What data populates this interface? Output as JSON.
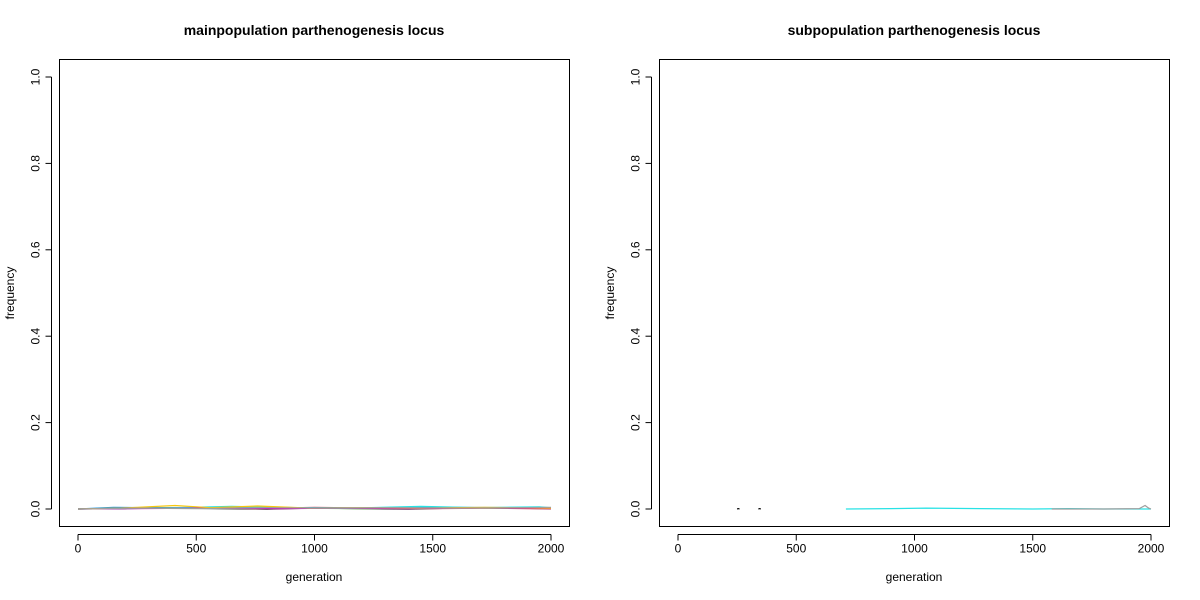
{
  "chart_data": [
    {
      "type": "line",
      "title": "mainpopulation parthenogenesis locus",
      "xlabel": "generation",
      "ylabel": "frequency",
      "xlim": [
        0,
        2000
      ],
      "ylim": [
        0,
        1
      ],
      "xticks": [
        0,
        500,
        1000,
        1500,
        2000
      ],
      "xtick_labels": [
        "0",
        "500",
        "1000",
        "1500",
        "2000"
      ],
      "yticks": [
        0,
        0.2,
        0.4,
        0.6,
        0.8,
        1.0
      ],
      "ytick_labels": [
        "0.0",
        "0.2",
        "0.4",
        "0.6",
        "0.8",
        "1.0"
      ],
      "grid": false,
      "series": [
        {
          "color": "#000000",
          "values": [
            [
              0,
              0
            ],
            [
              200,
              0.001
            ],
            [
              400,
              0.002
            ],
            [
              600,
              0.001
            ],
            [
              800,
              0.0
            ],
            [
              1000,
              0.002
            ],
            [
              1200,
              0.001
            ],
            [
              1400,
              0.0
            ],
            [
              1600,
              0.002
            ],
            [
              1800,
              0.003
            ],
            [
              2000,
              0.001
            ]
          ]
        },
        {
          "color": "#df536b",
          "values": [
            [
              0,
              0
            ],
            [
              250,
              0.002
            ],
            [
              500,
              0.003
            ],
            [
              750,
              0.001
            ],
            [
              1000,
              0.004
            ],
            [
              1250,
              0.002
            ],
            [
              1500,
              0.001
            ],
            [
              1750,
              0.002
            ],
            [
              2000,
              0.0
            ]
          ]
        },
        {
          "color": "#61d04f",
          "values": [
            [
              0,
              0
            ],
            [
              300,
              0.003
            ],
            [
              600,
              0.004
            ],
            [
              900,
              0.002
            ],
            [
              1200,
              0.001
            ],
            [
              1500,
              0.003
            ],
            [
              1800,
              0.002
            ],
            [
              2000,
              0.001
            ]
          ]
        },
        {
          "color": "#2297e6",
          "values": [
            [
              0,
              0
            ],
            [
              150,
              0.004
            ],
            [
              450,
              0.002
            ],
            [
              700,
              0.005
            ],
            [
              950,
              0.003
            ],
            [
              1300,
              0.002
            ],
            [
              1550,
              0.004
            ],
            [
              1900,
              0.003
            ],
            [
              2000,
              0.002
            ]
          ]
        },
        {
          "color": "#28e2e5",
          "values": [
            [
              0,
              0
            ],
            [
              350,
              0.002
            ],
            [
              650,
              0.006
            ],
            [
              900,
              0.003
            ],
            [
              1150,
              0.002
            ],
            [
              1450,
              0.006
            ],
            [
              1700,
              0.003
            ],
            [
              1950,
              0.005
            ],
            [
              2000,
              0.003
            ]
          ]
        },
        {
          "color": "#cd0bbc",
          "values": [
            [
              0,
              0
            ],
            [
              200,
              0.001
            ],
            [
              550,
              0.002
            ],
            [
              850,
              0.001
            ],
            [
              1100,
              0.002
            ],
            [
              1400,
              0.001
            ],
            [
              1650,
              0.003
            ],
            [
              2000,
              0.001
            ]
          ]
        },
        {
          "color": "#f5c710",
          "values": [
            [
              0,
              0
            ],
            [
              180,
              0.002
            ],
            [
              410,
              0.008
            ],
            [
              560,
              0.003
            ],
            [
              760,
              0.007
            ],
            [
              980,
              0.002
            ],
            [
              1200,
              0.003
            ],
            [
              1450,
              0.002
            ],
            [
              1720,
              0.004
            ],
            [
              2000,
              0.002
            ]
          ]
        },
        {
          "color": "#9e9e9e",
          "values": [
            [
              0,
              0
            ],
            [
              250,
              0.002
            ],
            [
              500,
              0.001
            ],
            [
              800,
              0.003
            ],
            [
              1050,
              0.002
            ],
            [
              1350,
              0.003
            ],
            [
              1600,
              0.002
            ],
            [
              1850,
              0.003
            ],
            [
              2000,
              0.004
            ]
          ]
        }
      ]
    },
    {
      "type": "line",
      "title": "subpopulation parthenogenesis locus",
      "xlabel": "generation",
      "ylabel": "frequency",
      "xlim": [
        0,
        2000
      ],
      "ylim": [
        0,
        1
      ],
      "xticks": [
        0,
        500,
        1000,
        1500,
        2000
      ],
      "xtick_labels": [
        "0",
        "500",
        "1000",
        "1500",
        "2000"
      ],
      "yticks": [
        0,
        0.2,
        0.4,
        0.6,
        0.8,
        1.0
      ],
      "ytick_labels": [
        "0.0",
        "0.2",
        "0.4",
        "0.6",
        "0.8",
        "1.0"
      ],
      "grid": false,
      "series": [
        {
          "color": "#28e2e5",
          "values": [
            [
              710,
              0
            ],
            [
              900,
              0.001
            ],
            [
              1050,
              0.002
            ],
            [
              1280,
              0.001
            ],
            [
              1500,
              0.0
            ],
            [
              1650,
              0.001
            ],
            [
              1800,
              0.0
            ],
            [
              2000,
              0.0
            ]
          ]
        },
        {
          "color": "#9e9e9e",
          "values": [
            [
              1580,
              0
            ],
            [
              1800,
              0.0
            ],
            [
              1950,
              0.001
            ],
            [
              1975,
              0.008
            ],
            [
              1990,
              0.002
            ],
            [
              2000,
              0.0
            ]
          ]
        },
        {
          "color": "#000000",
          "values": [
            [
              250,
              0
            ],
            [
              255,
              0.001
            ],
            [
              260,
              0
            ]
          ]
        },
        {
          "color": "#000000",
          "values": [
            [
              340,
              0
            ],
            [
              345,
              0.001
            ],
            [
              350,
              0
            ]
          ]
        }
      ]
    }
  ]
}
